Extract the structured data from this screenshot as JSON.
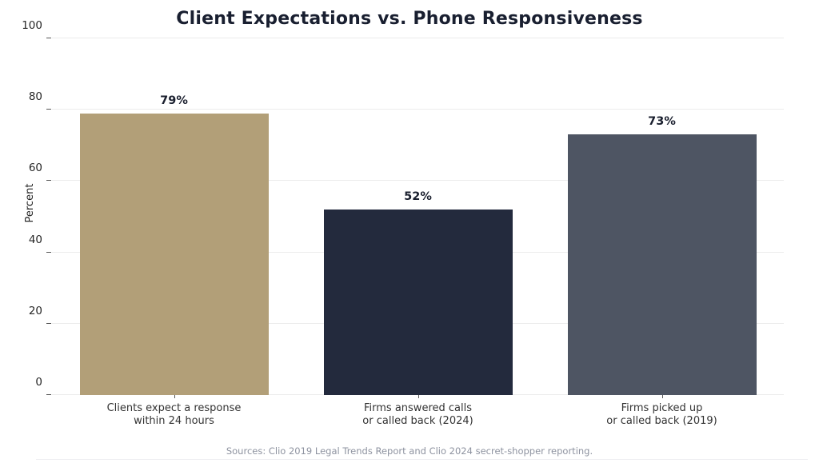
{
  "chart_data": {
    "type": "bar",
    "title": "Client Expectations vs. Phone Responsiveness",
    "ylabel": "Percent",
    "ylim": [
      0,
      100
    ],
    "yticks": [
      0,
      20,
      40,
      60,
      80,
      100
    ],
    "grid": true,
    "legend": "none",
    "categories": [
      "Clients expect a response\nwithin 24 hours",
      "Firms answered calls\nor called back (2024)",
      "Firms picked up\nor called back (2019)"
    ],
    "values": [
      79,
      52,
      73
    ],
    "value_labels": [
      "79%",
      "52%",
      "73%"
    ],
    "bar_colors": [
      "#b29f78",
      "#232a3d",
      "#4e5563"
    ],
    "source_note": "Sources: Clio 2019 Legal Trends Report and Clio 2024 secret-shopper reporting."
  },
  "colors": {
    "title_text": "#191f30",
    "value_label_text": "#1a1f2e",
    "tick_label_text": "#262626",
    "category_label_text": "#333333",
    "gridline": "#ececec",
    "source_text": "#8e93a0",
    "background": "#ffffff"
  }
}
